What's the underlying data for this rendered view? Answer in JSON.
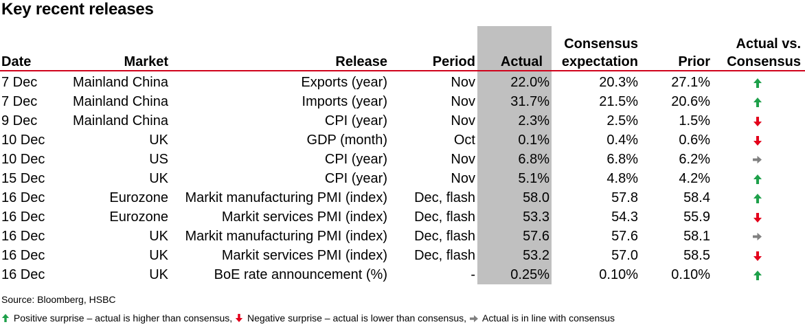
{
  "title": "Key recent releases",
  "headers": {
    "date": "Date",
    "market": "Market",
    "release": "Release",
    "period": "Period",
    "actual": "Actual",
    "consensus_line1": "Consensus",
    "consensus_line2": "expectation",
    "prior": "Prior",
    "vs_line1": "Actual vs.",
    "vs_line2": "Consensus"
  },
  "rows": [
    {
      "date": "7 Dec",
      "market": "Mainland China",
      "release": "Exports (year)",
      "period": "Nov",
      "actual": "22.0%",
      "consensus": "20.3%",
      "prior": "27.1%",
      "surprise": "up"
    },
    {
      "date": "7 Dec",
      "market": "Mainland China",
      "release": "Imports (year)",
      "period": "Nov",
      "actual": "31.7%",
      "consensus": "21.5%",
      "prior": "20.6%",
      "surprise": "up"
    },
    {
      "date": "9 Dec",
      "market": "Mainland China",
      "release": "CPI (year)",
      "period": "Nov",
      "actual": "2.3%",
      "consensus": "2.5%",
      "prior": "1.5%",
      "surprise": "down"
    },
    {
      "date": "10 Dec",
      "market": "UK",
      "release": "GDP (month)",
      "period": "Oct",
      "actual": "0.1%",
      "consensus": "0.4%",
      "prior": "0.6%",
      "surprise": "down"
    },
    {
      "date": "10 Dec",
      "market": "US",
      "release": "CPI (year)",
      "period": "Nov",
      "actual": "6.8%",
      "consensus": "6.8%",
      "prior": "6.2%",
      "surprise": "flat"
    },
    {
      "date": "15 Dec",
      "market": "UK",
      "release": "CPI (year)",
      "period": "Nov",
      "actual": "5.1%",
      "consensus": "4.8%",
      "prior": "4.2%",
      "surprise": "up"
    },
    {
      "date": "16 Dec",
      "market": "Eurozone",
      "release": "Markit manufacturing PMI (index)",
      "period": "Dec, flash",
      "actual": "58.0",
      "consensus": "57.8",
      "prior": "58.4",
      "surprise": "up"
    },
    {
      "date": "16 Dec",
      "market": "Eurozone",
      "release": "Markit services PMI (index)",
      "period": "Dec, flash",
      "actual": "53.3",
      "consensus": "54.3",
      "prior": "55.9",
      "surprise": "down"
    },
    {
      "date": "16 Dec",
      "market": "UK",
      "release": "Markit manufacturing PMI (index)",
      "period": "Dec, flash",
      "actual": "57.6",
      "consensus": "57.6",
      "prior": "58.1",
      "surprise": "flat"
    },
    {
      "date": "16 Dec",
      "market": "UK",
      "release": "Markit services PMI (index)",
      "period": "Dec, flash",
      "actual": "53.2",
      "consensus": "57.0",
      "prior": "58.5",
      "surprise": "down"
    },
    {
      "date": "16 Dec",
      "market": "UK",
      "release": "BoE rate announcement (%)",
      "period": "-",
      "actual": "0.25%",
      "consensus": "0.10%",
      "prior": "0.10%",
      "surprise": "up"
    }
  ],
  "source": "Source: Bloomberg, HSBC",
  "legend": {
    "positive": "Positive surprise – actual is higher than consensus,",
    "negative": "Negative surprise – actual is lower than consensus,",
    "inline": "Actual is in line with consensus"
  },
  "colors": {
    "up": "#1ea04a",
    "down": "#e3001b",
    "flat": "#808080",
    "rule": "#d0021b",
    "actual_column_bg": "#c0c0c0"
  },
  "icons": {
    "up": "arrow-up-icon",
    "down": "arrow-down-icon",
    "flat": "arrow-right-icon"
  }
}
